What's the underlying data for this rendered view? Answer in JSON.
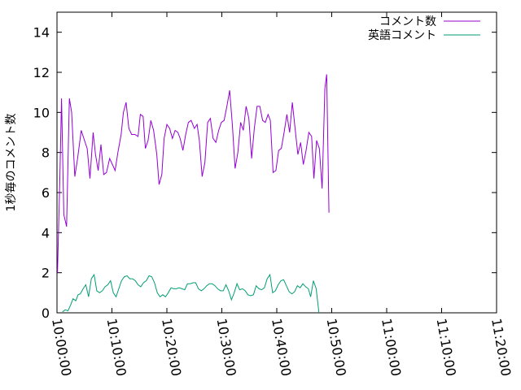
{
  "chart_data": {
    "type": "line",
    "ylabel": "1秒毎のコメント数",
    "xlabel": "",
    "ylim": [
      0,
      15
    ],
    "yticks": [
      0,
      2,
      4,
      6,
      8,
      10,
      12,
      14
    ],
    "xlim_seconds": [
      0,
      4800
    ],
    "xticks": [
      {
        "t": 0,
        "label": "10:00:00"
      },
      {
        "t": 600,
        "label": "10:10:00"
      },
      {
        "t": 1200,
        "label": "10:20:00"
      },
      {
        "t": 1800,
        "label": "10:30:00"
      },
      {
        "t": 2400,
        "label": "10:40:00"
      },
      {
        "t": 3000,
        "label": "10:50:00"
      },
      {
        "t": 3600,
        "label": "11:00:00"
      },
      {
        "t": 4200,
        "label": "11:10:00"
      },
      {
        "t": 4800,
        "label": "11:20:00"
      }
    ],
    "legend_position": "top-right",
    "grid": false,
    "series": [
      {
        "name": "コメント数",
        "color": "#9400d3",
        "points": [
          [
            5,
            2.0
          ],
          [
            30,
            6.5
          ],
          [
            50,
            10.7
          ],
          [
            75,
            4.9
          ],
          [
            105,
            4.3
          ],
          [
            135,
            10.7
          ],
          [
            160,
            10.0
          ],
          [
            195,
            6.8
          ],
          [
            225,
            7.7
          ],
          [
            265,
            9.1
          ],
          [
            300,
            8.6
          ],
          [
            330,
            8.2
          ],
          [
            360,
            6.7
          ],
          [
            395,
            9.0
          ],
          [
            420,
            7.9
          ],
          [
            450,
            7.1
          ],
          [
            480,
            8.4
          ],
          [
            510,
            6.9
          ],
          [
            540,
            7.0
          ],
          [
            575,
            7.7
          ],
          [
            605,
            7.4
          ],
          [
            635,
            7.1
          ],
          [
            665,
            8.0
          ],
          [
            700,
            8.9
          ],
          [
            725,
            10.0
          ],
          [
            755,
            10.5
          ],
          [
            785,
            9.2
          ],
          [
            815,
            8.9
          ],
          [
            850,
            8.9
          ],
          [
            885,
            8.8
          ],
          [
            910,
            9.9
          ],
          [
            940,
            9.8
          ],
          [
            965,
            8.2
          ],
          [
            995,
            8.6
          ],
          [
            1025,
            9.6
          ],
          [
            1055,
            9.1
          ],
          [
            1090,
            7.9
          ],
          [
            1115,
            6.4
          ],
          [
            1145,
            6.9
          ],
          [
            1170,
            8.7
          ],
          [
            1200,
            9.4
          ],
          [
            1230,
            9.2
          ],
          [
            1260,
            8.7
          ],
          [
            1290,
            9.1
          ],
          [
            1320,
            9.0
          ],
          [
            1345,
            8.7
          ],
          [
            1375,
            8.1
          ],
          [
            1405,
            8.9
          ],
          [
            1435,
            9.5
          ],
          [
            1465,
            9.6
          ],
          [
            1500,
            9.2
          ],
          [
            1530,
            9.4
          ],
          [
            1555,
            8.6
          ],
          [
            1585,
            6.8
          ],
          [
            1615,
            7.5
          ],
          [
            1645,
            9.5
          ],
          [
            1675,
            9.7
          ],
          [
            1705,
            8.7
          ],
          [
            1735,
            8.5
          ],
          [
            1765,
            9.1
          ],
          [
            1795,
            9.5
          ],
          [
            1825,
            9.6
          ],
          [
            1855,
            10.3
          ],
          [
            1885,
            11.1
          ],
          [
            1915,
            9.4
          ],
          [
            1945,
            7.2
          ],
          [
            1975,
            8.0
          ],
          [
            2005,
            9.5
          ],
          [
            2035,
            9.1
          ],
          [
            2065,
            10.3
          ],
          [
            2095,
            9.7
          ],
          [
            2125,
            7.7
          ],
          [
            2155,
            9.2
          ],
          [
            2185,
            10.3
          ],
          [
            2215,
            10.3
          ],
          [
            2245,
            9.6
          ],
          [
            2275,
            9.5
          ],
          [
            2305,
            9.9
          ],
          [
            2330,
            9.6
          ],
          [
            2360,
            7.0
          ],
          [
            2390,
            7.1
          ],
          [
            2420,
            8.1
          ],
          [
            2450,
            8.2
          ],
          [
            2480,
            9.0
          ],
          [
            2510,
            9.9
          ],
          [
            2540,
            9.0
          ],
          [
            2570,
            10.5
          ],
          [
            2600,
            9.2
          ],
          [
            2630,
            7.9
          ],
          [
            2660,
            8.5
          ],
          [
            2690,
            7.4
          ],
          [
            2720,
            8.1
          ],
          [
            2750,
            9.0
          ],
          [
            2780,
            8.8
          ],
          [
            2805,
            6.7
          ],
          [
            2835,
            8.6
          ],
          [
            2865,
            8.2
          ],
          [
            2895,
            6.2
          ],
          [
            2925,
            11.2
          ],
          [
            2945,
            11.9
          ],
          [
            2970,
            5.0
          ]
        ]
      },
      {
        "name": "英語コメント",
        "color": "#009e73",
        "points": [
          [
            60,
            0.05
          ],
          [
            90,
            0.15
          ],
          [
            120,
            0.1
          ],
          [
            150,
            0.4
          ],
          [
            175,
            0.7
          ],
          [
            205,
            0.6
          ],
          [
            230,
            0.9
          ],
          [
            255,
            0.95
          ],
          [
            285,
            1.2
          ],
          [
            315,
            1.4
          ],
          [
            345,
            0.8
          ],
          [
            375,
            1.7
          ],
          [
            405,
            1.9
          ],
          [
            435,
            1.1
          ],
          [
            465,
            1.0
          ],
          [
            495,
            1.1
          ],
          [
            525,
            1.3
          ],
          [
            555,
            1.4
          ],
          [
            585,
            1.6
          ],
          [
            615,
            1.0
          ],
          [
            645,
            0.8
          ],
          [
            675,
            1.2
          ],
          [
            705,
            1.6
          ],
          [
            735,
            1.8
          ],
          [
            765,
            1.85
          ],
          [
            795,
            1.7
          ],
          [
            825,
            1.7
          ],
          [
            855,
            1.6
          ],
          [
            885,
            1.4
          ],
          [
            915,
            1.3
          ],
          [
            945,
            1.5
          ],
          [
            975,
            1.6
          ],
          [
            1005,
            1.85
          ],
          [
            1035,
            1.8
          ],
          [
            1065,
            1.5
          ],
          [
            1095,
            1.0
          ],
          [
            1125,
            0.8
          ],
          [
            1155,
            0.9
          ],
          [
            1185,
            0.8
          ],
          [
            1215,
            1.0
          ],
          [
            1245,
            1.25
          ],
          [
            1275,
            1.2
          ],
          [
            1305,
            1.2
          ],
          [
            1335,
            1.25
          ],
          [
            1365,
            1.2
          ],
          [
            1395,
            1.15
          ],
          [
            1425,
            1.45
          ],
          [
            1455,
            1.45
          ],
          [
            1485,
            1.5
          ],
          [
            1515,
            1.5
          ],
          [
            1545,
            1.2
          ],
          [
            1575,
            1.1
          ],
          [
            1605,
            1.2
          ],
          [
            1635,
            1.35
          ],
          [
            1665,
            1.45
          ],
          [
            1695,
            1.45
          ],
          [
            1725,
            1.35
          ],
          [
            1755,
            1.2
          ],
          [
            1785,
            1.1
          ],
          [
            1815,
            1.1
          ],
          [
            1845,
            1.4
          ],
          [
            1875,
            1.1
          ],
          [
            1905,
            0.65
          ],
          [
            1935,
            1.0
          ],
          [
            1965,
            1.45
          ],
          [
            1995,
            1.15
          ],
          [
            2025,
            1.2
          ],
          [
            2055,
            1.1
          ],
          [
            2085,
            0.9
          ],
          [
            2115,
            0.85
          ],
          [
            2145,
            0.9
          ],
          [
            2175,
            1.35
          ],
          [
            2205,
            1.2
          ],
          [
            2235,
            1.15
          ],
          [
            2265,
            1.25
          ],
          [
            2295,
            1.7
          ],
          [
            2325,
            1.9
          ],
          [
            2355,
            1.0
          ],
          [
            2385,
            1.1
          ],
          [
            2415,
            1.4
          ],
          [
            2445,
            1.6
          ],
          [
            2475,
            1.65
          ],
          [
            2505,
            1.35
          ],
          [
            2535,
            1.05
          ],
          [
            2565,
            0.95
          ],
          [
            2595,
            1.05
          ],
          [
            2625,
            1.35
          ],
          [
            2655,
            1.25
          ],
          [
            2685,
            1.45
          ],
          [
            2715,
            1.3
          ],
          [
            2745,
            1.2
          ],
          [
            2770,
            0.8
          ],
          [
            2800,
            1.6
          ],
          [
            2830,
            1.2
          ],
          [
            2860,
            0.0
          ]
        ]
      }
    ]
  }
}
